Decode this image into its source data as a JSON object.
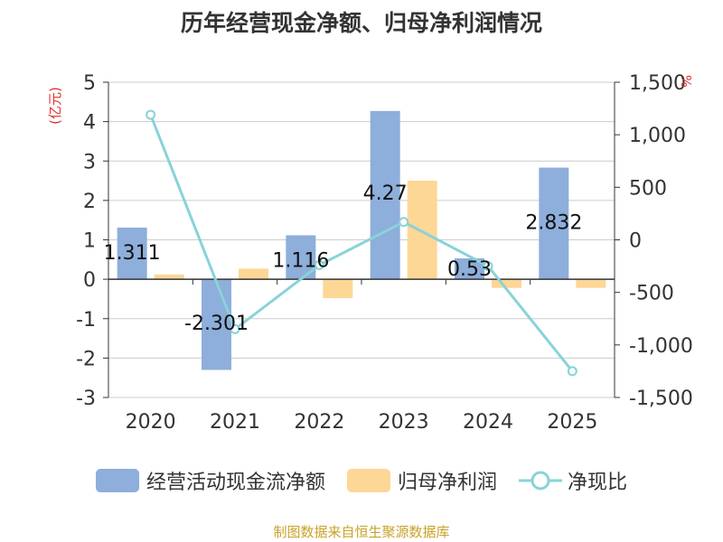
{
  "title": "历年经营现金净额、归母净利润情况",
  "source": "制图数据来自恒生聚源数据库",
  "chart_data": {
    "type": "bar",
    "categories": [
      "2020",
      "2021",
      "2022",
      "2023",
      "2024",
      "2025"
    ],
    "left_axis": {
      "label": "(亿元)",
      "ylim": [
        -3,
        5
      ],
      "ticks": [
        "5",
        "4",
        "3",
        "2",
        "1",
        "0",
        "-1",
        "-2",
        "-3"
      ]
    },
    "right_axis": {
      "label": "%",
      "ylim": [
        -1500,
        1500
      ],
      "ticks": [
        "1,500",
        "1,000",
        "500",
        "0",
        "-500",
        "-1,000",
        "-1,500"
      ]
    },
    "series": [
      {
        "name": "经营活动现金流净额",
        "type": "bar",
        "axis": "left",
        "color": "#8eaedb",
        "values": [
          1.311,
          -2.301,
          1.116,
          4.27,
          0.53,
          2.832
        ],
        "labels": [
          "1.311",
          "-2.301",
          "1.116",
          "4.27",
          "0.53",
          "2.832"
        ]
      },
      {
        "name": "归母净利润",
        "type": "bar",
        "axis": "left",
        "color": "#fdd796",
        "values": [
          0.12,
          0.27,
          -0.48,
          2.5,
          -0.22,
          -0.22
        ]
      },
      {
        "name": "净现比",
        "type": "line",
        "axis": "right",
        "color": "#88d3d8",
        "values": [
          1190,
          -850,
          -240,
          170,
          -250,
          -1250
        ]
      }
    ],
    "grid": true,
    "legend_position": "bottom"
  }
}
